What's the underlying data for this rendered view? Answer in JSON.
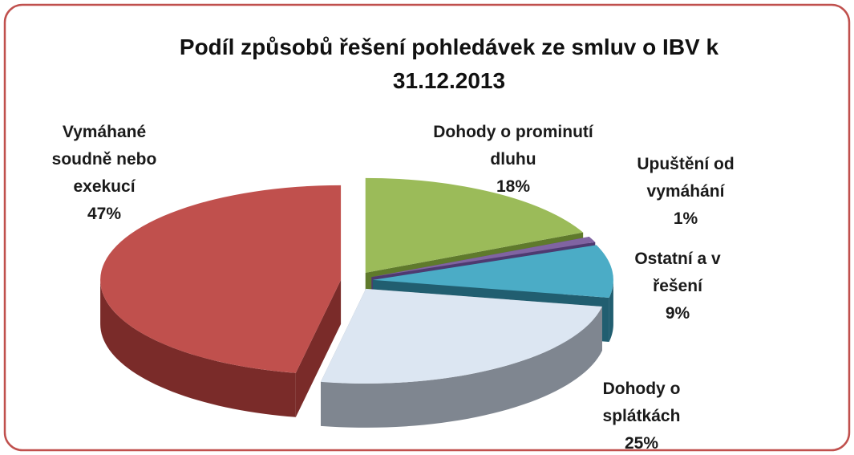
{
  "chart_data": {
    "type": "pie3d",
    "title": "Podíl způsobů řešení pohledávek ze smluv o IBV k 31.12.2013",
    "categories": [
      "Dohody o prominutí dluhu",
      "Upuštění od vymáhání",
      "Ostatní a v řešení",
      "Dohody o splátkách",
      "Vymáhané soudně nebo exekucí"
    ],
    "values": [
      18,
      1,
      9,
      25,
      47
    ],
    "value_labels": [
      "18%",
      "1%",
      "9%",
      "25%",
      "47%"
    ],
    "colors": [
      "#9bbb59",
      "#8064a2",
      "#4bacc6",
      "#dce6f2",
      "#c0504d"
    ],
    "side_colors": [
      "#5f7a2c",
      "#4e3a70",
      "#215e70",
      "#7f8690",
      "#7a2b29"
    ]
  }
}
